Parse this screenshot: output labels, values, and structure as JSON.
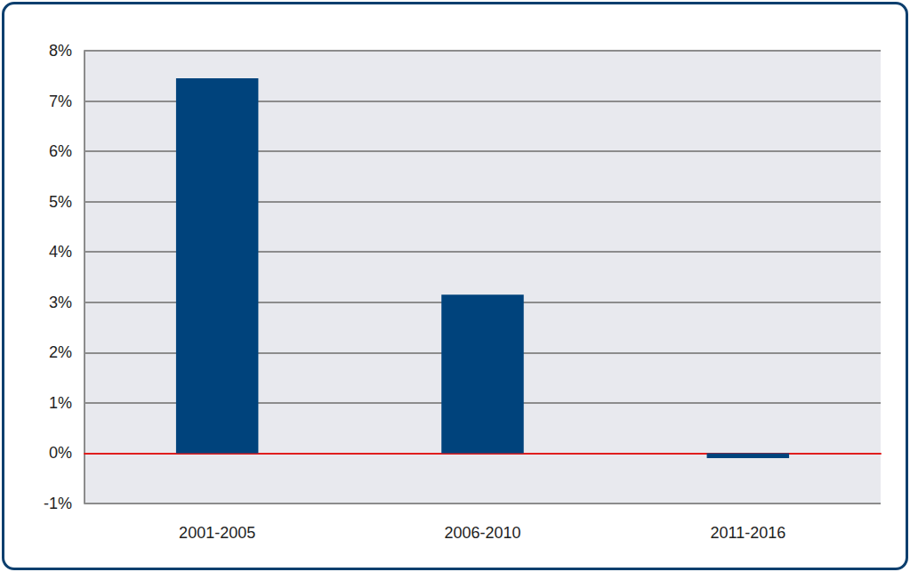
{
  "chart_data": {
    "type": "bar",
    "categories": [
      "2001-2005",
      "2006-2010",
      "2011-2016"
    ],
    "values": [
      7.45,
      3.15,
      -0.1
    ],
    "color": "#00437c",
    "ylim": [
      -1,
      8
    ],
    "yticks": [
      {
        "value": -1,
        "label": "-1%"
      },
      {
        "value": 0,
        "label": "0%"
      },
      {
        "value": 1,
        "label": "1%"
      },
      {
        "value": 2,
        "label": "2%"
      },
      {
        "value": 3,
        "label": "3%"
      },
      {
        "value": 4,
        "label": "4%"
      },
      {
        "value": 5,
        "label": "5%"
      },
      {
        "value": 6,
        "label": "6%"
      },
      {
        "value": 7,
        "label": "7%"
      },
      {
        "value": 8,
        "label": "8%"
      }
    ],
    "grid": true
  }
}
